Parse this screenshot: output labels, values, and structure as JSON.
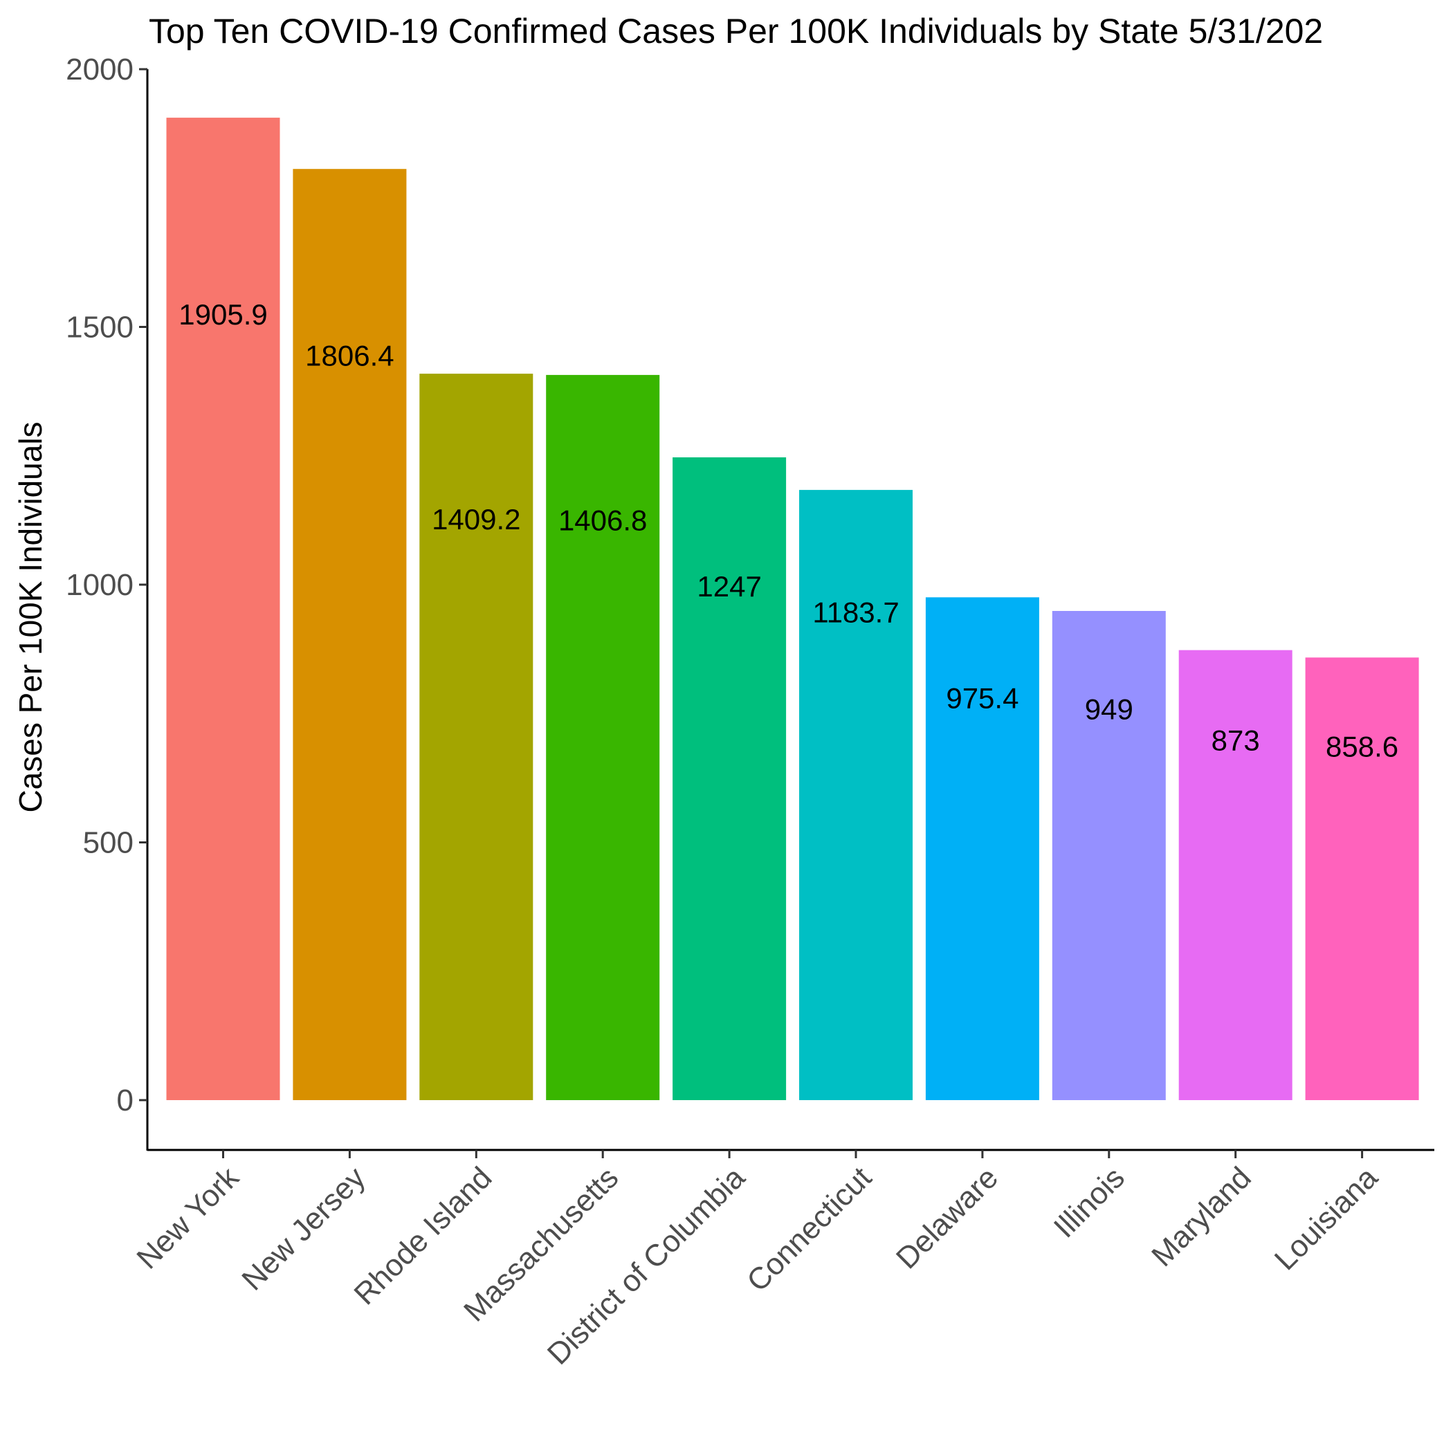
{
  "chart_data": {
    "type": "bar",
    "title": "Top Ten COVID-19 Confirmed Cases Per 100K Individuals by State 5/31/202",
    "xlabel": "",
    "ylabel": "Cases Per 100K Individuals",
    "ylim": [
      0,
      2000
    ],
    "yticks": [
      "0",
      "500",
      "1000",
      "1500",
      "2000"
    ],
    "legend": "none",
    "grid": false,
    "categories": [
      "New York",
      "New Jersey",
      "Rhode Island",
      "Massachusetts",
      "District of Columbia",
      "Connecticut",
      "Delaware",
      "Illinois",
      "Maryland",
      "Louisiana"
    ],
    "values": [
      1905.9,
      1806.4,
      1409.2,
      1406.8,
      1247,
      1183.7,
      975.4,
      949,
      873,
      858.6
    ],
    "labels": [
      "1905.9",
      "1806.4",
      "1409.2",
      "1406.8",
      "1247",
      "1183.7",
      "975.4",
      "949",
      "873",
      "858.6"
    ],
    "colors": [
      "#F8766D",
      "#D89000",
      "#A3A500",
      "#39B600",
      "#00BF7D",
      "#00BFC4",
      "#00B0F6",
      "#9590FF",
      "#E76BF3",
      "#FF62BC"
    ]
  }
}
